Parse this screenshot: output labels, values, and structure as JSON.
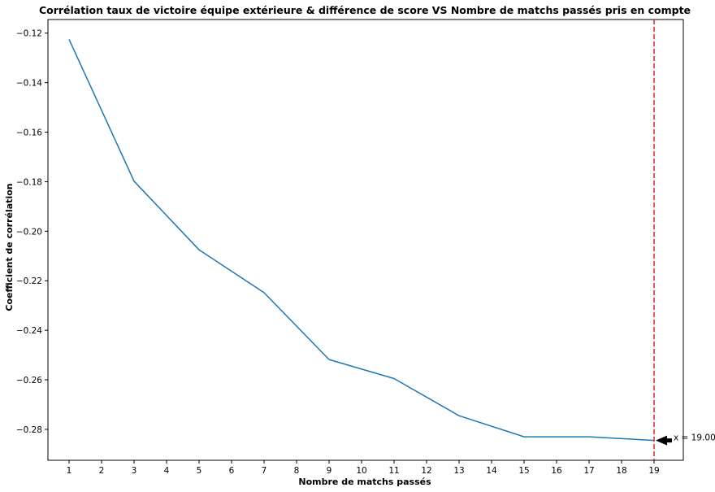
{
  "chart_data": {
    "type": "line",
    "title": "Corrélation taux de victoire équipe extérieure & différence de score VS Nombre de matchs passés pris en compte",
    "xlabel": "Nombre de matchs passés",
    "ylabel": "Coefficient de corrélation",
    "xlim": [
      0.35,
      19.9
    ],
    "ylim": [
      -0.2925,
      -0.1145
    ],
    "x_ticks": [
      1,
      2,
      3,
      4,
      5,
      6,
      7,
      8,
      9,
      10,
      11,
      12,
      13,
      14,
      15,
      16,
      17,
      18,
      19
    ],
    "y_ticks": [
      -0.12,
      -0.14,
      -0.16,
      -0.18,
      -0.2,
      -0.22,
      -0.24,
      -0.26,
      -0.28
    ],
    "y_tick_labels": [
      "−0.12",
      "−0.14",
      "−0.16",
      "−0.18",
      "−0.20",
      "−0.22",
      "−0.24",
      "−0.26",
      "−0.28"
    ],
    "grid": false,
    "series": [
      {
        "color": "#1f77b4",
        "x": [
          1,
          3,
          5,
          7,
          9,
          11,
          13,
          15,
          17,
          19
        ],
        "y": [
          -0.1225,
          -0.1798,
          -0.2075,
          -0.2248,
          -0.2518,
          -0.2595,
          -0.2745,
          -0.283,
          -0.283,
          -0.2845
        ]
      }
    ],
    "vline": {
      "x": 19,
      "color": "#d62728",
      "style": "dashed"
    },
    "annotation": {
      "text": "x = 19.00",
      "x": 19,
      "y": -0.2845,
      "arrow_color": "#000000"
    }
  }
}
